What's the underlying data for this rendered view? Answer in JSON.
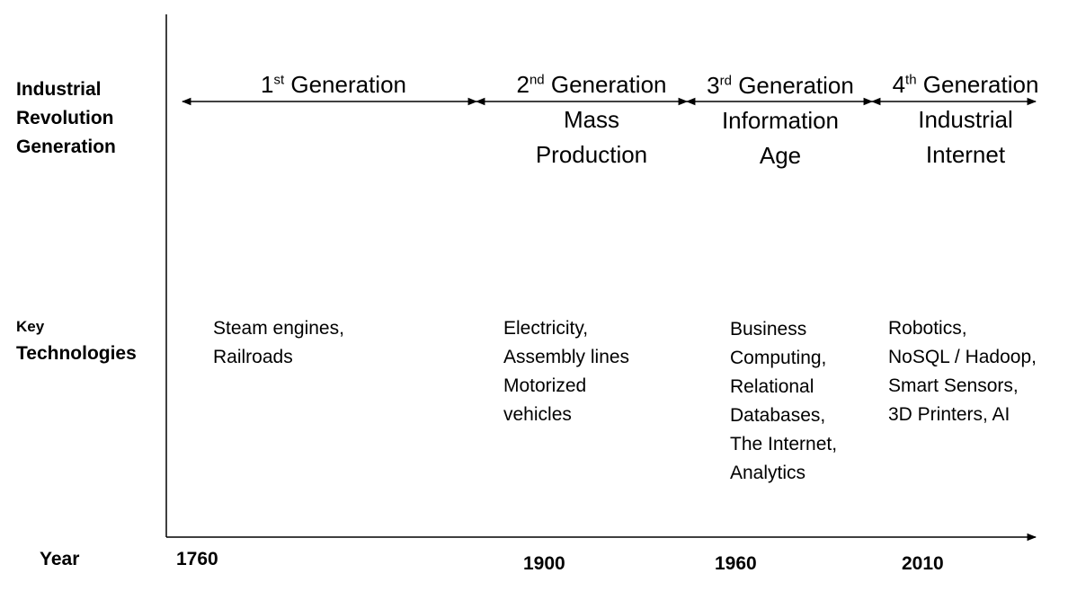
{
  "row_labels": {
    "generation": [
      "Industrial",
      "Revolution",
      "Generation"
    ],
    "tech_key": "Key",
    "tech_main": "Technologies",
    "year": "Year"
  },
  "generations": [
    {
      "num": "1",
      "sup": "st",
      "word": "Generation",
      "subtitle": []
    },
    {
      "num": "2",
      "sup": "nd",
      "word": "Generation",
      "subtitle": [
        "Mass",
        "Production"
      ]
    },
    {
      "num": "3",
      "sup": "rd",
      "word": "Generation",
      "subtitle": [
        "Information",
        "Age"
      ]
    },
    {
      "num": "4",
      "sup": "th",
      "word": "Generation",
      "subtitle": [
        "Industrial",
        "Internet"
      ]
    }
  ],
  "technologies": [
    [
      "Steam engines,",
      "Railroads"
    ],
    [
      "Electricity,",
      "Assembly lines",
      "Motorized",
      "vehicles"
    ],
    [
      "Business",
      "Computing,",
      "Relational",
      "Databases,",
      "The Internet,",
      "Analytics"
    ],
    [
      "Robotics,",
      "NoSQL / Hadoop,",
      "Smart Sensors,",
      "3D Printers, AI"
    ]
  ],
  "years": [
    "1760",
    "1900",
    "1960",
    "2010"
  ]
}
